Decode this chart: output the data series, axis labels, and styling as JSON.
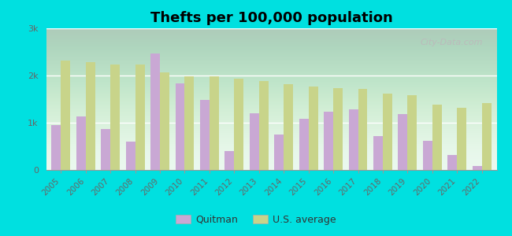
{
  "title": "Thefts per 100,000 population",
  "years": [
    2005,
    2006,
    2007,
    2008,
    2009,
    2010,
    2011,
    2012,
    2013,
    2014,
    2015,
    2016,
    2017,
    2018,
    2019,
    2020,
    2021,
    2022
  ],
  "quitman": [
    950,
    1130,
    870,
    600,
    2460,
    1840,
    1490,
    400,
    1200,
    750,
    1080,
    1230,
    1280,
    720,
    1190,
    620,
    320,
    90
  ],
  "us_average": [
    2320,
    2280,
    2230,
    2230,
    2060,
    1980,
    1980,
    1940,
    1880,
    1810,
    1760,
    1730,
    1710,
    1620,
    1590,
    1390,
    1310,
    1410
  ],
  "quitman_color": "#c9a8d4",
  "us_avg_color": "#c8d48a",
  "plot_bg_top": "#e8f8f0",
  "plot_bg_bottom": "#d0f0d8",
  "outer_background": "#00e0e0",
  "bar_width": 0.38,
  "ylim": [
    0,
    3000
  ],
  "yticks": [
    0,
    1000,
    2000,
    3000
  ],
  "ytick_labels": [
    "0",
    "1k",
    "2k",
    "3k"
  ],
  "title_fontsize": 13,
  "legend_labels": [
    "Quitman",
    "U.S. average"
  ],
  "watermark": "City-Data.com"
}
